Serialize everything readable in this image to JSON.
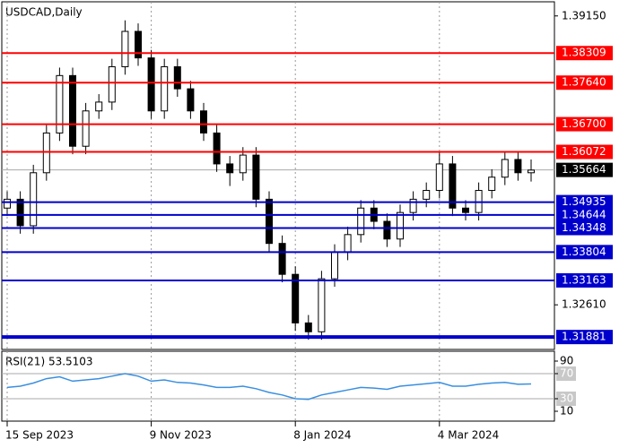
{
  "chart_data": [
    {
      "type": "candlestick",
      "title": "USDCAD,Daily",
      "categories": [
        "15 Sep 2023",
        null,
        null,
        null,
        null,
        null,
        null,
        null,
        null,
        null,
        null,
        "9 Nov 2023",
        null,
        null,
        null,
        null,
        null,
        null,
        null,
        null,
        null,
        null,
        "8 Jan 2024",
        null,
        null,
        null,
        null,
        null,
        null,
        null,
        null,
        null,
        null,
        "4 Mar 2024",
        null,
        null,
        null,
        null,
        null,
        null,
        null
      ],
      "open": [
        1.348,
        1.35,
        1.344,
        1.356,
        1.365,
        1.378,
        1.362,
        1.37,
        1.372,
        1.38,
        1.388,
        1.382,
        1.37,
        1.38,
        1.375,
        1.37,
        1.365,
        1.358,
        1.356,
        1.36,
        1.35,
        1.34,
        1.333,
        1.322,
        1.32,
        1.332,
        1.338,
        1.342,
        1.348,
        1.345,
        1.341,
        1.347,
        1.35,
        1.352,
        1.358,
        1.348,
        1.347,
        1.352,
        1.355,
        1.359,
        1.356
      ],
      "high": [
        1.3518,
        1.3518,
        1.3578,
        1.3668,
        1.3798,
        1.3798,
        1.3718,
        1.3738,
        1.3818,
        1.3905,
        1.3898,
        1.3838,
        1.3818,
        1.3818,
        1.3768,
        1.3718,
        1.3668,
        1.3598,
        1.3618,
        1.3618,
        1.3518,
        1.3418,
        1.3348,
        1.3238,
        1.3338,
        1.3398,
        1.3438,
        1.3498,
        1.3498,
        1.3468,
        1.3488,
        1.3518,
        1.3538,
        1.3608,
        1.3598,
        1.3498,
        1.3538,
        1.3568,
        1.3608,
        1.3608,
        1.359
      ],
      "low": [
        1.3462,
        1.3422,
        1.3422,
        1.3542,
        1.3632,
        1.3602,
        1.3602,
        1.3682,
        1.3702,
        1.3782,
        1.3802,
        1.3682,
        1.3682,
        1.3732,
        1.3682,
        1.3632,
        1.3562,
        1.353,
        1.3542,
        1.3482,
        1.3382,
        1.3312,
        1.3202,
        1.3182,
        1.3182,
        1.3302,
        1.3362,
        1.3402,
        1.3432,
        1.3392,
        1.3392,
        1.3452,
        1.3482,
        1.3502,
        1.3462,
        1.3452,
        1.3452,
        1.3502,
        1.3532,
        1.3542,
        1.354
      ],
      "close": [
        1.35,
        1.344,
        1.356,
        1.365,
        1.378,
        1.362,
        1.37,
        1.372,
        1.38,
        1.388,
        1.382,
        1.37,
        1.38,
        1.375,
        1.37,
        1.365,
        1.358,
        1.356,
        1.36,
        1.35,
        1.34,
        1.333,
        1.322,
        1.32,
        1.332,
        1.338,
        1.342,
        1.348,
        1.345,
        1.341,
        1.347,
        1.35,
        1.352,
        1.358,
        1.348,
        1.347,
        1.352,
        1.355,
        1.359,
        1.356,
        1.3566
      ],
      "ylim": [
        1.316,
        1.3947
      ],
      "yticks": [
        {
          "value": 1.3915,
          "label": "1.39150"
        },
        {
          "value": 1.3261,
          "label": "1.32610"
        }
      ],
      "levels": [
        {
          "value": 1.38309,
          "color": "#ff0000"
        },
        {
          "value": 1.3764,
          "label": "1.37640",
          "color": "#ff0000"
        },
        {
          "value": 1.367,
          "label": "1.36700",
          "color": "#ff0000"
        },
        {
          "value": 1.36072,
          "color": "#ff0000"
        },
        {
          "value": 1.34935,
          "color": "#0000cc"
        },
        {
          "value": 1.34644,
          "color": "#0000cc"
        },
        {
          "value": 1.34348,
          "color": "#0000cc"
        },
        {
          "value": 1.33804,
          "color": "#0000cc"
        },
        {
          "value": 1.33163,
          "color": "#0000cc"
        },
        {
          "value": 1.31881,
          "color": "#0000cc"
        }
      ],
      "current": {
        "value": 1.35664,
        "color": "#000000"
      }
    },
    {
      "type": "line",
      "title": "RSI(21) 53.5103",
      "color": "#3a8fe0",
      "values": [
        48,
        50,
        55,
        62,
        65,
        58,
        60,
        62,
        66,
        70,
        66,
        58,
        60,
        56,
        55,
        52,
        48,
        48,
        50,
        46,
        40,
        36,
        30,
        29,
        36,
        40,
        44,
        48,
        47,
        45,
        50,
        52,
        54,
        56,
        50,
        50,
        53,
        55,
        56,
        53,
        53.5103
      ],
      "ylim": [
        0,
        100
      ],
      "yticks": [
        90,
        70,
        30,
        10
      ],
      "levels": [
        70,
        30
      ]
    }
  ]
}
